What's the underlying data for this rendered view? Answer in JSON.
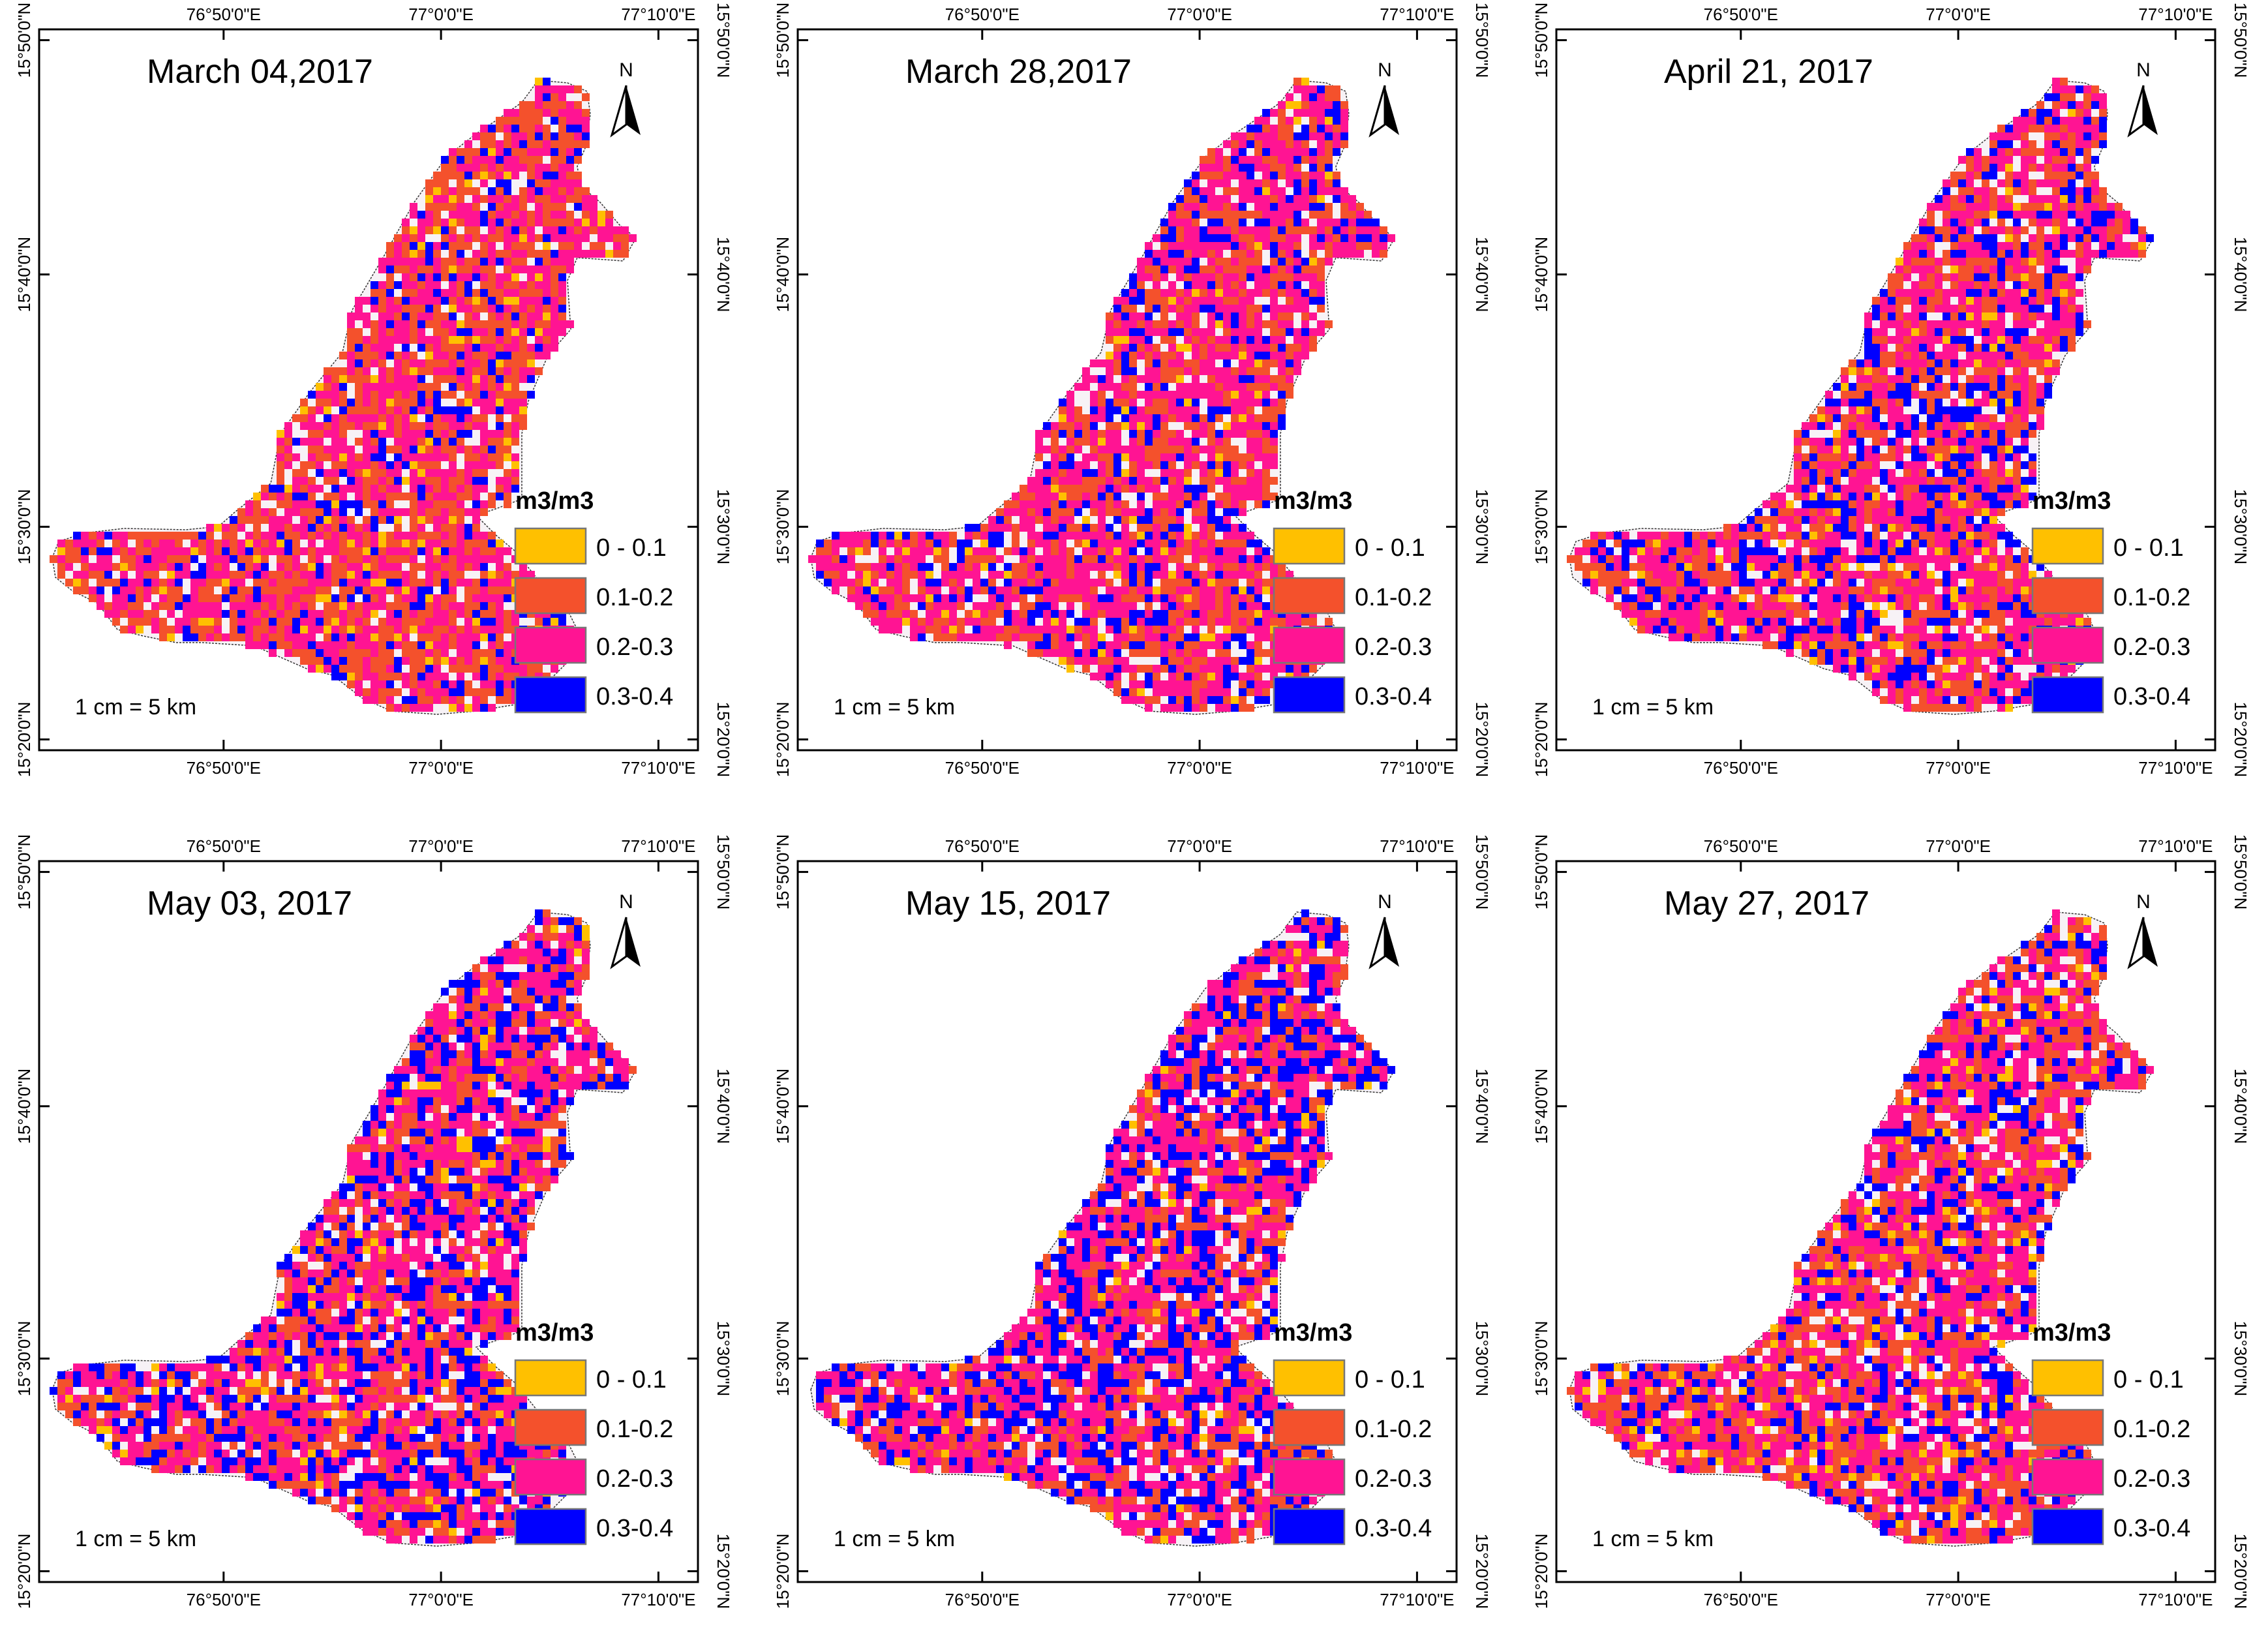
{
  "graticule": {
    "lon_labels": [
      "76°50'0\"E",
      "77°0'0\"E",
      "77°10'0\"E"
    ],
    "lat_labels": [
      "15°50'0\"N",
      "15°40'0\"N",
      "15°30'0\"N",
      "15°20'0\"N"
    ]
  },
  "north_label": "N",
  "legend": {
    "units": "m3/m3",
    "classes": [
      {
        "label": "0 - 0.1",
        "color": "#ffc000"
      },
      {
        "label": "0.1-0.2",
        "color": "#f4512c"
      },
      {
        "label": "0.2-0.3",
        "color": "#ff1493"
      },
      {
        "label": "0.3-0.4",
        "color": "#0000ff"
      }
    ]
  },
  "scale_text": "1 cm = 5 km",
  "panels": [
    {
      "title": "March 04,2017",
      "class_share": [
        0.05,
        0.4,
        0.43,
        0.12
      ]
    },
    {
      "title": "March 28,2017",
      "class_share": [
        0.04,
        0.3,
        0.48,
        0.18
      ]
    },
    {
      "title": "April 21, 2017",
      "class_share": [
        0.05,
        0.3,
        0.42,
        0.23
      ]
    },
    {
      "title": "May 03, 2017",
      "class_share": [
        0.05,
        0.26,
        0.43,
        0.26
      ]
    },
    {
      "title": "May 15, 2017",
      "class_share": [
        0.03,
        0.24,
        0.43,
        0.3
      ]
    },
    {
      "title": "May 27, 2017",
      "class_share": [
        0.06,
        0.33,
        0.42,
        0.19
      ]
    }
  ]
}
